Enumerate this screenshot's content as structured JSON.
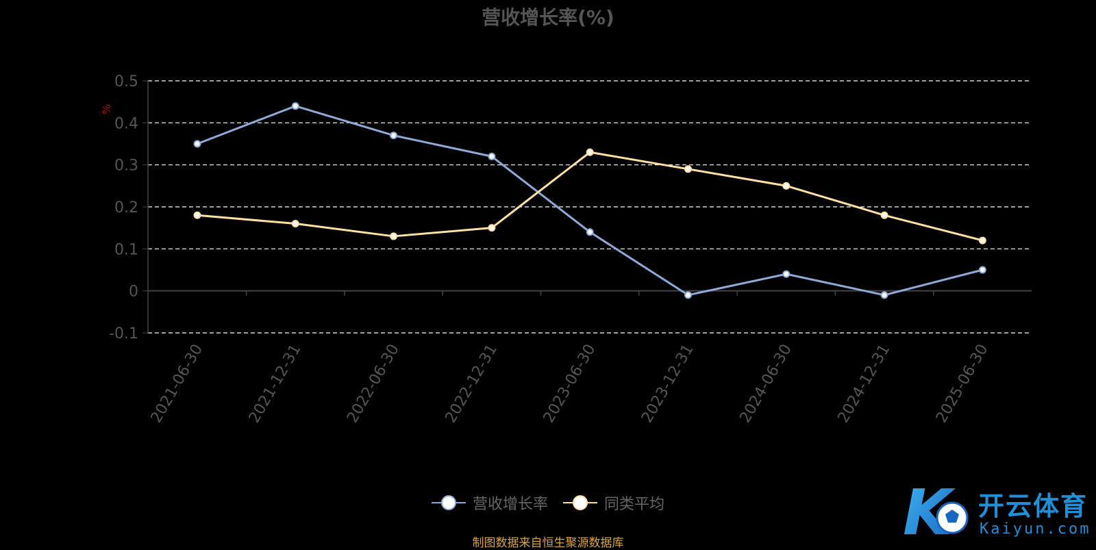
{
  "chart_data": {
    "type": "line",
    "title": "营收增长率(%)",
    "ylabel": "%",
    "ylim": [
      -0.1,
      0.5
    ],
    "yticks": [
      "-0.1",
      "0",
      "0.1",
      "0.2",
      "0.3",
      "0.4",
      "0.5"
    ],
    "ytick_values": [
      -0.1,
      0,
      0.1,
      0.2,
      0.3,
      0.4,
      0.5
    ],
    "grid": true,
    "legend_position": "bottom-center",
    "categories": [
      "2021-06-30",
      "2021-12-31",
      "2022-06-30",
      "2022-12-31",
      "2023-06-30",
      "2023-12-31",
      "2024-06-30",
      "2024-12-31",
      "2025-06-30"
    ],
    "series": [
      {
        "name": "营收增长率",
        "color": "#8eaadb",
        "values": [
          0.35,
          0.44,
          0.37,
          0.32,
          0.14,
          -0.01,
          0.04,
          -0.01,
          0.05
        ]
      },
      {
        "name": "同类平均",
        "color": "#ffe0a0",
        "values": [
          0.18,
          0.16,
          0.13,
          0.15,
          0.33,
          0.29,
          0.25,
          0.18,
          0.12
        ]
      }
    ]
  },
  "legend": {
    "items": [
      {
        "label": "营收增长率",
        "color": "#8eaadb"
      },
      {
        "label": "同类平均",
        "color": "#ffe0a0"
      }
    ]
  },
  "footer": {
    "source": "制图数据来自恒生聚源数据库"
  },
  "logo": {
    "name_cn": "开云体育",
    "name_en": "Kaiyun.com",
    "mark_text": "K"
  }
}
